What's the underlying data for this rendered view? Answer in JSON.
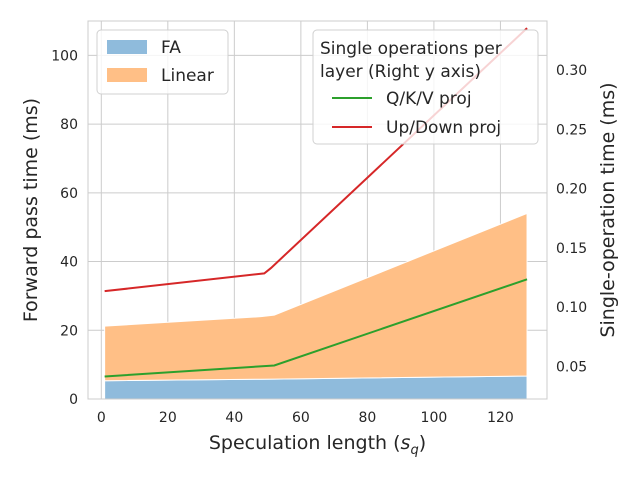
{
  "chart_data": {
    "type": "area",
    "x_axis": {
      "label_prefix": "Speculation length (",
      "label_symbol": "s",
      "label_subscript": "q",
      "label_suffix": ")",
      "lim": [
        -4,
        134
      ],
      "ticks": [
        0,
        20,
        40,
        60,
        80,
        100,
        120
      ],
      "tick_labels": [
        "0",
        "20",
        "40",
        "60",
        "80",
        "100",
        "120"
      ]
    },
    "y_left": {
      "label": "Forward pass time (ms)",
      "lim": [
        0,
        110
      ],
      "ticks": [
        0,
        20,
        40,
        60,
        80,
        100
      ],
      "tick_labels": [
        "0",
        "20",
        "40",
        "60",
        "80",
        "100"
      ]
    },
    "y_right": {
      "label": "Single-operation time (ms)",
      "lim": [
        0.0225,
        0.3415
      ],
      "ticks": [
        0.05,
        0.1,
        0.15,
        0.2,
        0.25,
        0.3
      ],
      "tick_labels": [
        "0.05",
        "0.10",
        "0.15",
        "0.20",
        "0.25",
        "0.30"
      ]
    },
    "grid": true,
    "stacked_series": [
      {
        "name": "FA",
        "color": "#8fbbdc",
        "x": [
          1,
          52,
          128
        ],
        "values": [
          5.3,
          5.8,
          6.7
        ]
      },
      {
        "name": "Linear",
        "color": "#ffbf86",
        "x": [
          1,
          48,
          52,
          128
        ],
        "values": [
          15.9,
          18.2,
          18.6,
          47.3
        ]
      }
    ],
    "line_series": [
      {
        "name": "Q/K/V proj",
        "color": "#2ca02c",
        "x": [
          1,
          52,
          128
        ],
        "values": [
          0.0415,
          0.0508,
          0.1235
        ]
      },
      {
        "name": "Up/Down proj",
        "color": "#d62728",
        "x": [
          1,
          49,
          51,
          128
        ],
        "values": [
          0.1135,
          0.1285,
          0.133,
          0.3355
        ]
      }
    ],
    "legends": [
      {
        "placement": "upper-left",
        "entries": [
          "FA",
          "Linear"
        ]
      },
      {
        "placement": "upper-right",
        "title_lines": [
          "Single operations per",
          "layer (Right y axis)"
        ],
        "entries": [
          "Q/K/V proj",
          "Up/Down proj"
        ]
      }
    ]
  }
}
